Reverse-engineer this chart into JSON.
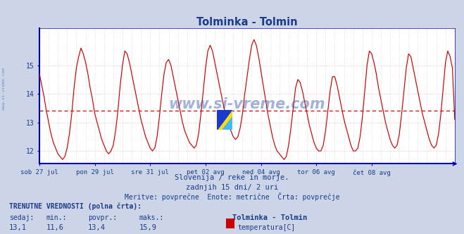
{
  "title": "Tolminka - Tolmin",
  "title_color": "#1a3a8a",
  "bg_color": "#ccd5e8",
  "plot_bg_color": "#ffffff",
  "line_color": "#cc0000",
  "avg_line_color": "#cc0000",
  "avg_value": 13.4,
  "grid_color_dotted": "#e8b8b8",
  "grid_color_solid": "#c8c8d8",
  "ylabel_color": "#1a3a8a",
  "xlabel_color": "#1a3a8a",
  "border_color": "#0000bb",
  "ylim_min": 11.55,
  "ylim_max": 16.3,
  "yticks": [
    12,
    13,
    14,
    15
  ],
  "subtitle1": "Slovenija / reke in morje.",
  "subtitle2": "zadnjih 15 dni/ 2 uri",
  "subtitle3": "Meritve: povprečne  Enote: metrične  Črta: povprečje",
  "footer_title": "TRENUTNE VREDNOSTI (polna črta):",
  "footer_labels": [
    "sedaj:",
    "min.:",
    "povpr.:",
    "maks.:"
  ],
  "footer_values": [
    "13,1",
    "11,6",
    "13,4",
    "15,9"
  ],
  "footer_station": "Tolminka - Tolmin",
  "footer_series": "temperatura[C]",
  "footer_series_color": "#cc0000",
  "watermark": "www.si-vreme.com",
  "watermark_color": "#3355aa",
  "side_watermark_color": "#5577bb",
  "xtick_labels": [
    "sob 27 jul",
    "pon 29 jul",
    "sre 31 jul",
    "pet 02 avg",
    "ned 04 avg",
    "tor 06 avg",
    "čet 08 avg"
  ],
  "xtick_positions": [
    0,
    24,
    48,
    72,
    96,
    120,
    144
  ],
  "temperature_data": [
    14.7,
    14.3,
    13.9,
    13.4,
    13.0,
    12.6,
    12.3,
    12.1,
    11.9,
    11.8,
    11.7,
    11.8,
    12.1,
    12.6,
    13.3,
    14.2,
    14.9,
    15.3,
    15.6,
    15.4,
    15.1,
    14.7,
    14.2,
    13.8,
    13.3,
    13.0,
    12.7,
    12.4,
    12.2,
    12.0,
    11.9,
    12.0,
    12.2,
    12.7,
    13.4,
    14.3,
    15.0,
    15.5,
    15.4,
    15.1,
    14.7,
    14.3,
    13.9,
    13.5,
    13.1,
    12.8,
    12.5,
    12.3,
    12.1,
    12.0,
    12.1,
    12.5,
    13.2,
    14.0,
    14.7,
    15.1,
    15.2,
    15.0,
    14.6,
    14.2,
    13.8,
    13.4,
    13.0,
    12.7,
    12.5,
    12.3,
    12.2,
    12.1,
    12.2,
    12.6,
    13.3,
    14.1,
    14.9,
    15.5,
    15.7,
    15.5,
    15.1,
    14.7,
    14.3,
    13.9,
    13.5,
    13.2,
    12.9,
    12.7,
    12.5,
    12.4,
    12.5,
    12.8,
    13.3,
    14.0,
    14.6,
    15.2,
    15.7,
    15.9,
    15.7,
    15.3,
    14.8,
    14.3,
    13.8,
    13.3,
    12.9,
    12.5,
    12.2,
    12.0,
    11.9,
    11.8,
    11.7,
    11.8,
    12.2,
    12.8,
    13.5,
    14.2,
    14.5,
    14.4,
    14.1,
    13.7,
    13.3,
    12.9,
    12.6,
    12.3,
    12.1,
    12.0,
    12.0,
    12.2,
    12.7,
    13.4,
    14.1,
    14.6,
    14.6,
    14.3,
    13.9,
    13.5,
    13.1,
    12.8,
    12.5,
    12.2,
    12.0,
    12.0,
    12.1,
    12.5,
    13.2,
    14.1,
    15.0,
    15.5,
    15.4,
    15.1,
    14.7,
    14.2,
    13.8,
    13.4,
    13.0,
    12.7,
    12.4,
    12.2,
    12.1,
    12.2,
    12.6,
    13.3,
    14.1,
    14.9,
    15.4,
    15.3,
    14.9,
    14.5,
    14.1,
    13.7,
    13.3,
    13.0,
    12.7,
    12.4,
    12.2,
    12.1,
    12.2,
    12.6,
    13.3,
    14.2,
    15.1,
    15.5,
    15.3,
    14.9,
    13.1
  ]
}
